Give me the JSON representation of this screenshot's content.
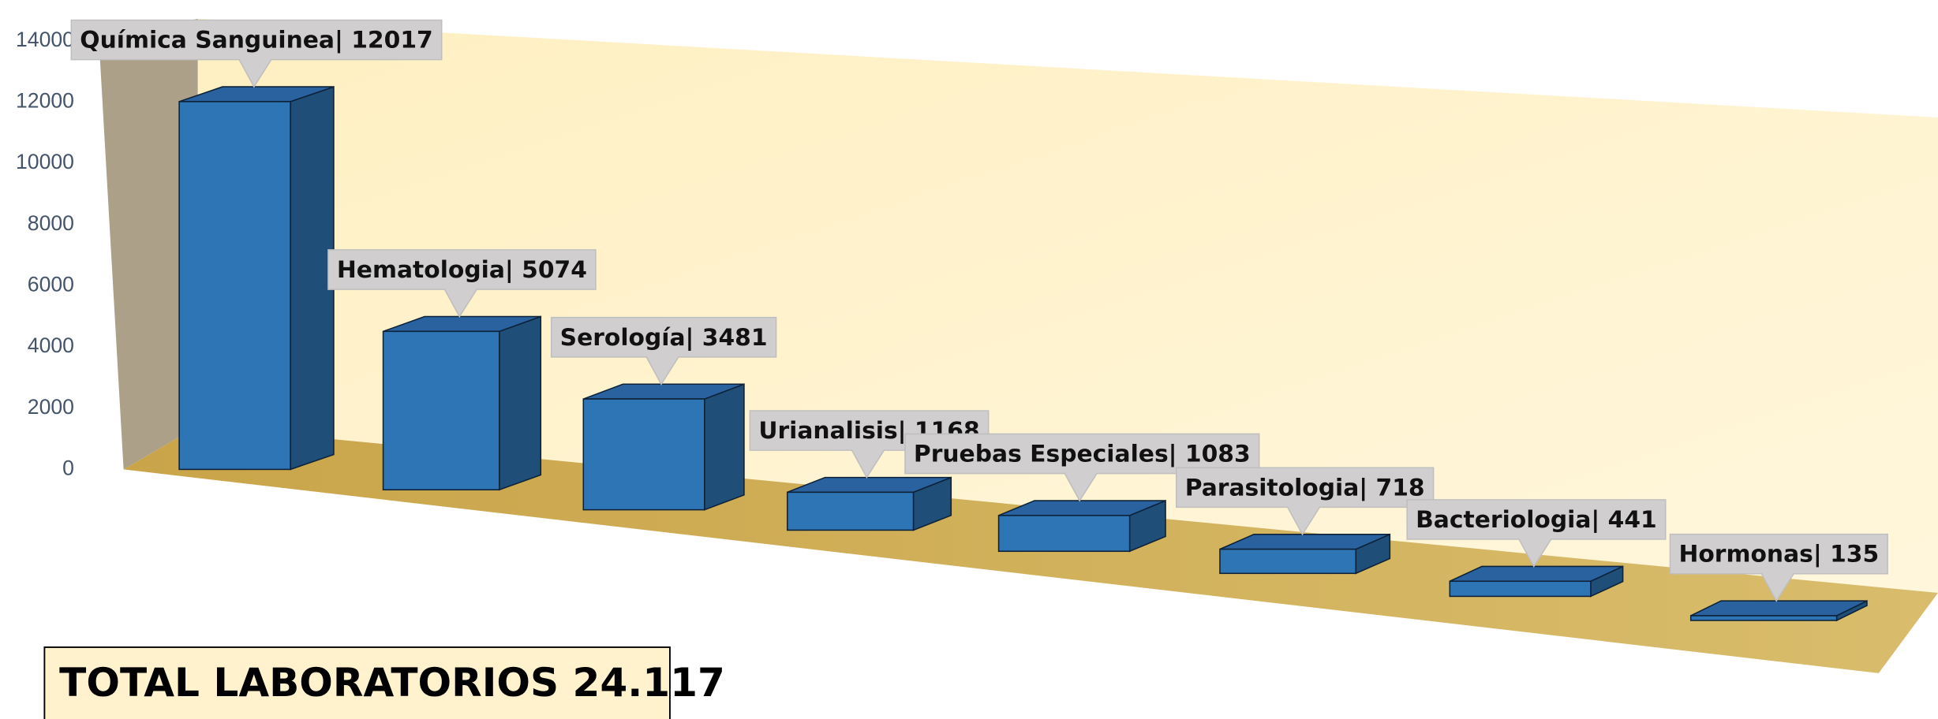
{
  "chart_data": {
    "type": "bar3d",
    "categories": [
      "Química Sanguinea",
      "Hematologia",
      "Serología",
      "Urianalisis",
      "Pruebas Especiales",
      "Parasitologia",
      "Bacteriologia",
      "Hormonas"
    ],
    "values": [
      12017,
      5074,
      3481,
      1168,
      1083,
      718,
      441,
      135
    ],
    "value_labels": [
      "Química Sanguinea| 12017",
      "Hematologia| 5074",
      "Serología| 3481",
      "Urianalisis| 1168",
      "Pruebas Especiales| 1083",
      "Parasitologia| 718",
      "Bacteriologia| 441",
      "Hormonas| 135"
    ],
    "color": "#2e75b6",
    "ylim": [
      0,
      14000
    ],
    "yticks": [
      0,
      2000,
      4000,
      6000,
      8000,
      10000,
      12000,
      14000
    ],
    "annotation": "TOTAL LABORATORIOS  24.117"
  }
}
